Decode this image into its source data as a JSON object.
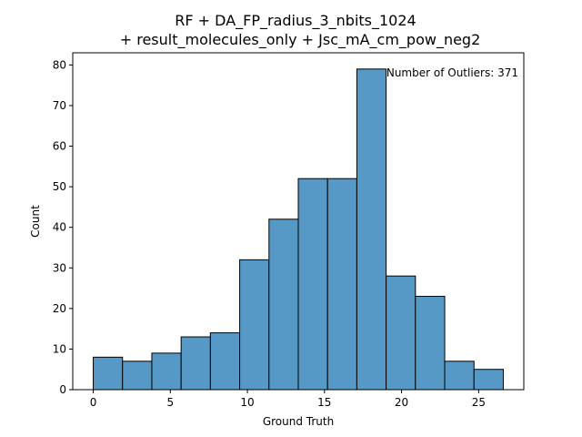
{
  "chart_data": {
    "type": "bar",
    "title_lines": [
      "RF + DA_FP_radius_3_nbits_1024",
      "+ result_molecules_only + Jsc_mA_cm_pow_neg2"
    ],
    "xlabel": "Ground Truth",
    "ylabel": "Count",
    "xlim": [
      -1.33,
      27.93
    ],
    "ylim": [
      0,
      83
    ],
    "xticks": [
      0,
      5,
      10,
      15,
      20,
      25
    ],
    "yticks": [
      0,
      10,
      20,
      30,
      40,
      50,
      60,
      70,
      80
    ],
    "bin_edges": [
      0.0,
      1.9,
      3.8,
      5.7,
      7.6,
      9.5,
      11.4,
      13.3,
      15.2,
      17.1,
      19.0,
      20.9,
      22.8,
      24.7,
      26.6
    ],
    "values": [
      8,
      7,
      9,
      13,
      14,
      32,
      42,
      52,
      52,
      79,
      28,
      23,
      7,
      5
    ],
    "bar_color": "#5799c6",
    "edge_color": "#000000",
    "annotation": "Number of Outliers: 371",
    "grid": false
  }
}
